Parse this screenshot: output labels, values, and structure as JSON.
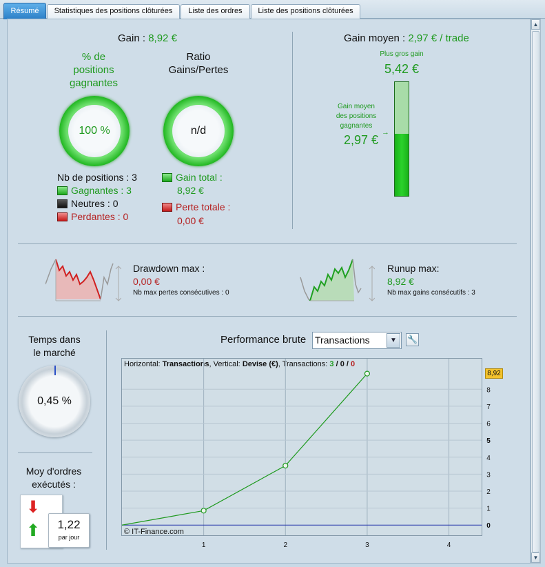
{
  "tabs": [
    {
      "label": "Résumé",
      "active": true
    },
    {
      "label": "Statistiques des positions clôturées",
      "active": false
    },
    {
      "label": "Liste des ordres",
      "active": false
    },
    {
      "label": "Liste des positions clôturées",
      "active": false
    }
  ],
  "summary": {
    "gain_label": "Gain :",
    "gain_value": "8,92 €",
    "pct_winning_title": "% de\npositions\ngagnantes",
    "pct_winning_value": "100 %",
    "ratio_title": "Ratio\nGains/Pertes",
    "ratio_value": "n/d",
    "nb_positions": "Nb de positions : 3",
    "winning": "Gagnantes : 3",
    "neutral": "Neutres : 0",
    "losing": "Perdantes : 0",
    "gain_total_label": "Gain total :",
    "gain_total_value": "8,92 €",
    "loss_total_label": "Perte totale :",
    "loss_total_value": "0,00 €"
  },
  "average": {
    "label": "Gain moyen :",
    "value": "2,97 € / trade",
    "biggest_label": "Plus gros gain",
    "biggest_value": "5,42 €",
    "avg_winning_label": "Gain moyen\ndes positions\ngagnantes",
    "avg_winning_value": "2,97 €",
    "bar_fill_fraction": 0.548
  },
  "drawdown": {
    "label": "Drawdown max :",
    "value": "0,00 €",
    "sub": "Nb max pertes consécutives : 0"
  },
  "runup": {
    "label": "Runup max:",
    "value": "8,92 €",
    "sub": "Nb max gains consécutifs : 3"
  },
  "time_in_market": {
    "title": "Temps dans\nle marché",
    "value": "0,45 %",
    "fraction": 0.0045
  },
  "orders": {
    "title": "Moy d'ordres\nexécutés :",
    "value": "1,22",
    "unit": "par jour"
  },
  "performance": {
    "label": "Performance brute",
    "select_value": "Transactions",
    "chart_header_h": "Horizontal:",
    "chart_header_h_val": "Transactions",
    "chart_header_v": ", Vertical:",
    "chart_header_v_val": "Devise (€)",
    "chart_header_t": ", Transactions:",
    "tx_win": "3",
    "tx_sep1": "/",
    "tx_neutral": "0",
    "tx_sep2": "/",
    "tx_loss": "0",
    "watermark": "© IT-Finance.com",
    "last_value_badge": "8,92"
  },
  "chart_data": {
    "type": "line",
    "x": [
      0,
      1,
      2,
      3
    ],
    "y": [
      0,
      0.85,
      3.5,
      8.92
    ],
    "xlim": [
      0,
      4.4
    ],
    "ylim": [
      -0.6,
      9.8
    ],
    "x_ticks": [
      "1",
      "2",
      "3",
      "4"
    ],
    "y_ticks": [
      "0",
      "1",
      "2",
      "3",
      "4",
      "5",
      "6",
      "7",
      "8"
    ],
    "bold_y_ticks": [
      "0",
      "5"
    ],
    "line_color": "#1f9a1f",
    "zero_line_color": "#2233aa",
    "grid": true
  },
  "colors": {
    "green": "#1f9a1f",
    "red": "#b52020",
    "tab_active": "#2b7fc7"
  }
}
